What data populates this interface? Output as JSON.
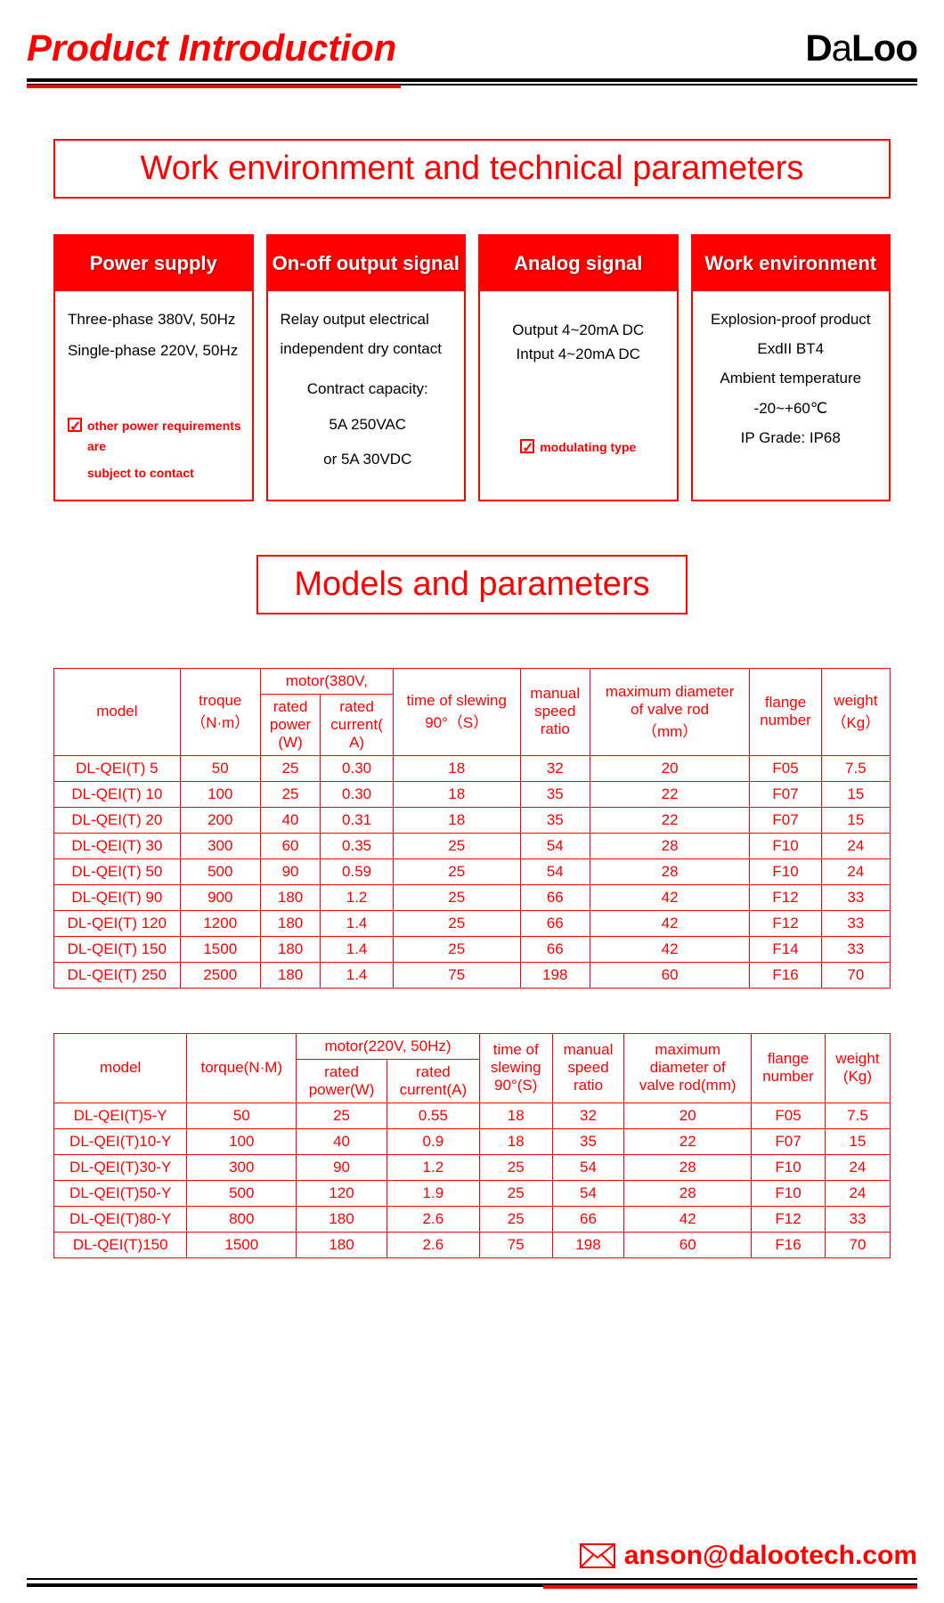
{
  "page_title": "Product Introduction",
  "logo": {
    "part1": "D",
    "part2": "a",
    "part3": "Loo"
  },
  "section1_title": "Work environment and technical parameters",
  "cards": [
    {
      "header": "Power supply",
      "lines": [
        "Three-phase 380V, 50Hz",
        "Single-phase 220V, 50Hz"
      ],
      "note": "other power requirements are subject to contact",
      "note_lines": [
        "other power requirements are",
        "subject to contact"
      ]
    },
    {
      "header": "On-off output signal",
      "lines": [
        "Relay output electrical",
        "independent dry contact",
        "",
        "Contract capacity:",
        "5A 250VAC",
        "or 5A 30VDC"
      ]
    },
    {
      "header": "Analog signal",
      "lines": [
        "Output 4~20mA DC",
        "Intput 4~20mA DC"
      ],
      "note": "modulating type"
    },
    {
      "header": "Work environment",
      "lines": [
        "Explosion-proof product",
        "ExdII BT4",
        "Ambient temperature",
        "-20~+60℃",
        "IP Grade: IP68"
      ]
    }
  ],
  "section2_title": "Models and parameters",
  "table1": {
    "headers": {
      "model": "model",
      "torque": "troque\n（N·m）",
      "motor_group": "motor(380V,",
      "rated_power": "rated power(W)",
      "rated_current": "rated current(A)",
      "slewing": "time of slewing 90°（S）",
      "manual": "manual speed ratio",
      "max_diam": "maximum diameter of valve rod\n（mm）",
      "flange": "flange number",
      "weight": "weight\n（Kg）"
    },
    "rows": [
      [
        "DL-QEI(T) 5",
        "50",
        "25",
        "0.30",
        "18",
        "32",
        "20",
        "F05",
        "7.5"
      ],
      [
        "DL-QEI(T) 10",
        "100",
        "25",
        "0.30",
        "18",
        "35",
        "22",
        "F07",
        "15"
      ],
      [
        "DL-QEI(T) 20",
        "200",
        "40",
        "0.31",
        "18",
        "35",
        "22",
        "F07",
        "15"
      ],
      [
        "DL-QEI(T) 30",
        "300",
        "60",
        "0.35",
        "25",
        "54",
        "28",
        "F10",
        "24"
      ],
      [
        "DL-QEI(T) 50",
        "500",
        "90",
        "0.59",
        "25",
        "54",
        "28",
        "F10",
        "24"
      ],
      [
        "DL-QEI(T) 90",
        "900",
        "180",
        "1.2",
        "25",
        "66",
        "42",
        "F12",
        "33"
      ],
      [
        "DL-QEI(T) 120",
        "1200",
        "180",
        "1.4",
        "25",
        "66",
        "42",
        "F12",
        "33"
      ],
      [
        "DL-QEI(T) 150",
        "1500",
        "180",
        "1.4",
        "25",
        "66",
        "42",
        "F14",
        "33"
      ],
      [
        "DL-QEI(T) 250",
        "2500",
        "180",
        "1.4",
        "75",
        "198",
        "60",
        "F16",
        "70"
      ]
    ]
  },
  "table2": {
    "headers": {
      "model": "model",
      "torque": "torque(N·M)",
      "motor_group": "motor(220V, 50Hz)",
      "rated_power": "rated power(W)",
      "rated_current": "rated current(A)",
      "slewing": "time of slewing 90°(S)",
      "manual": "manual speed ratio",
      "max_diam": "maximum diameter of valve rod(mm)",
      "flange": "flange number",
      "weight": "weight (Kg)"
    },
    "rows": [
      [
        "DL-QEI(T)5-Y",
        "50",
        "25",
        "0.55",
        "18",
        "32",
        "20",
        "F05",
        "7.5"
      ],
      [
        "DL-QEI(T)10-Y",
        "100",
        "40",
        "0.9",
        "18",
        "35",
        "22",
        "F07",
        "15"
      ],
      [
        "DL-QEI(T)30-Y",
        "300",
        "90",
        "1.2",
        "25",
        "54",
        "28",
        "F10",
        "24"
      ],
      [
        "DL-QEI(T)50-Y",
        "500",
        "120",
        "1.9",
        "25",
        "54",
        "28",
        "F10",
        "24"
      ],
      [
        "DL-QEI(T)80-Y",
        "800",
        "180",
        "2.6",
        "25",
        "66",
        "42",
        "F12",
        "33"
      ],
      [
        "DL-QEI(T)150",
        "1500",
        "180",
        "2.6",
        "75",
        "198",
        "60",
        "F16",
        "70"
      ]
    ]
  },
  "footer_email": "anson@dalootech.com",
  "colors": {
    "primary": "#ff0000",
    "text": "#000000",
    "bg": "#ffffff"
  }
}
